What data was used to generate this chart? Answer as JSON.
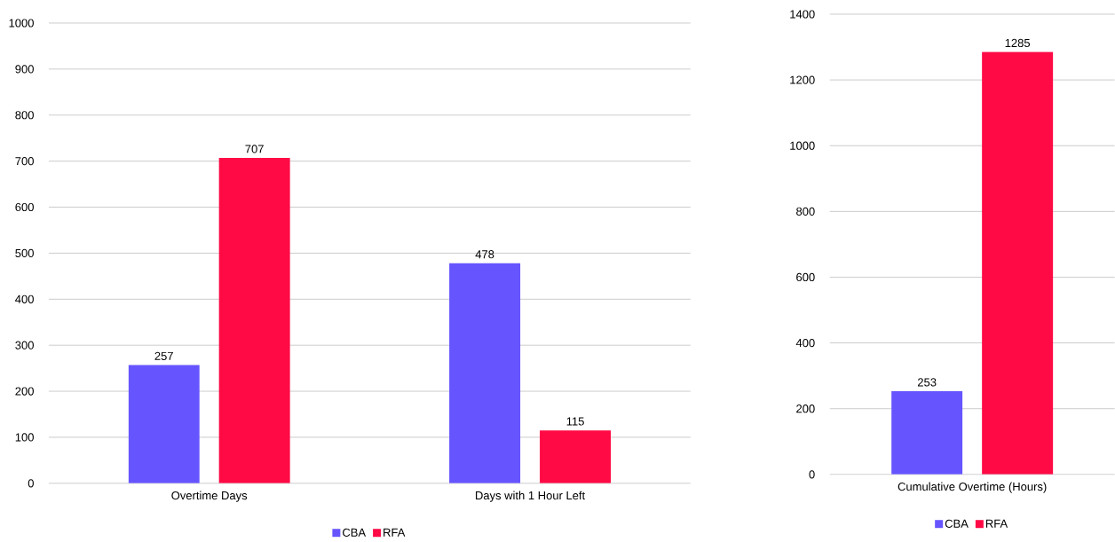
{
  "chart_data": [
    {
      "type": "bar",
      "categories": [
        "Overtime Days",
        "Days with 1 Hour Left"
      ],
      "series": [
        {
          "name": "CBA",
          "color": "#6655ff",
          "values": [
            257,
            478
          ]
        },
        {
          "name": "RFA",
          "color": "#ff0a45",
          "values": [
            707,
            115
          ]
        }
      ],
      "ylim": [
        0,
        1000
      ],
      "yticks": [
        0,
        100,
        200,
        300,
        400,
        500,
        600,
        700,
        800,
        900,
        1000
      ],
      "grid": "y",
      "legend": "bottom",
      "data_labels": true
    },
    {
      "type": "bar",
      "categories": [
        "Cumulative Overtime (Hours)"
      ],
      "series": [
        {
          "name": "CBA",
          "color": "#6655ff",
          "values": [
            253
          ]
        },
        {
          "name": "RFA",
          "color": "#ff0a45",
          "values": [
            1285
          ]
        }
      ],
      "ylim": [
        0,
        1400
      ],
      "yticks": [
        0,
        200,
        400,
        600,
        800,
        1000,
        1200,
        1400
      ],
      "grid": "y",
      "legend": "bottom",
      "data_labels": true
    }
  ]
}
